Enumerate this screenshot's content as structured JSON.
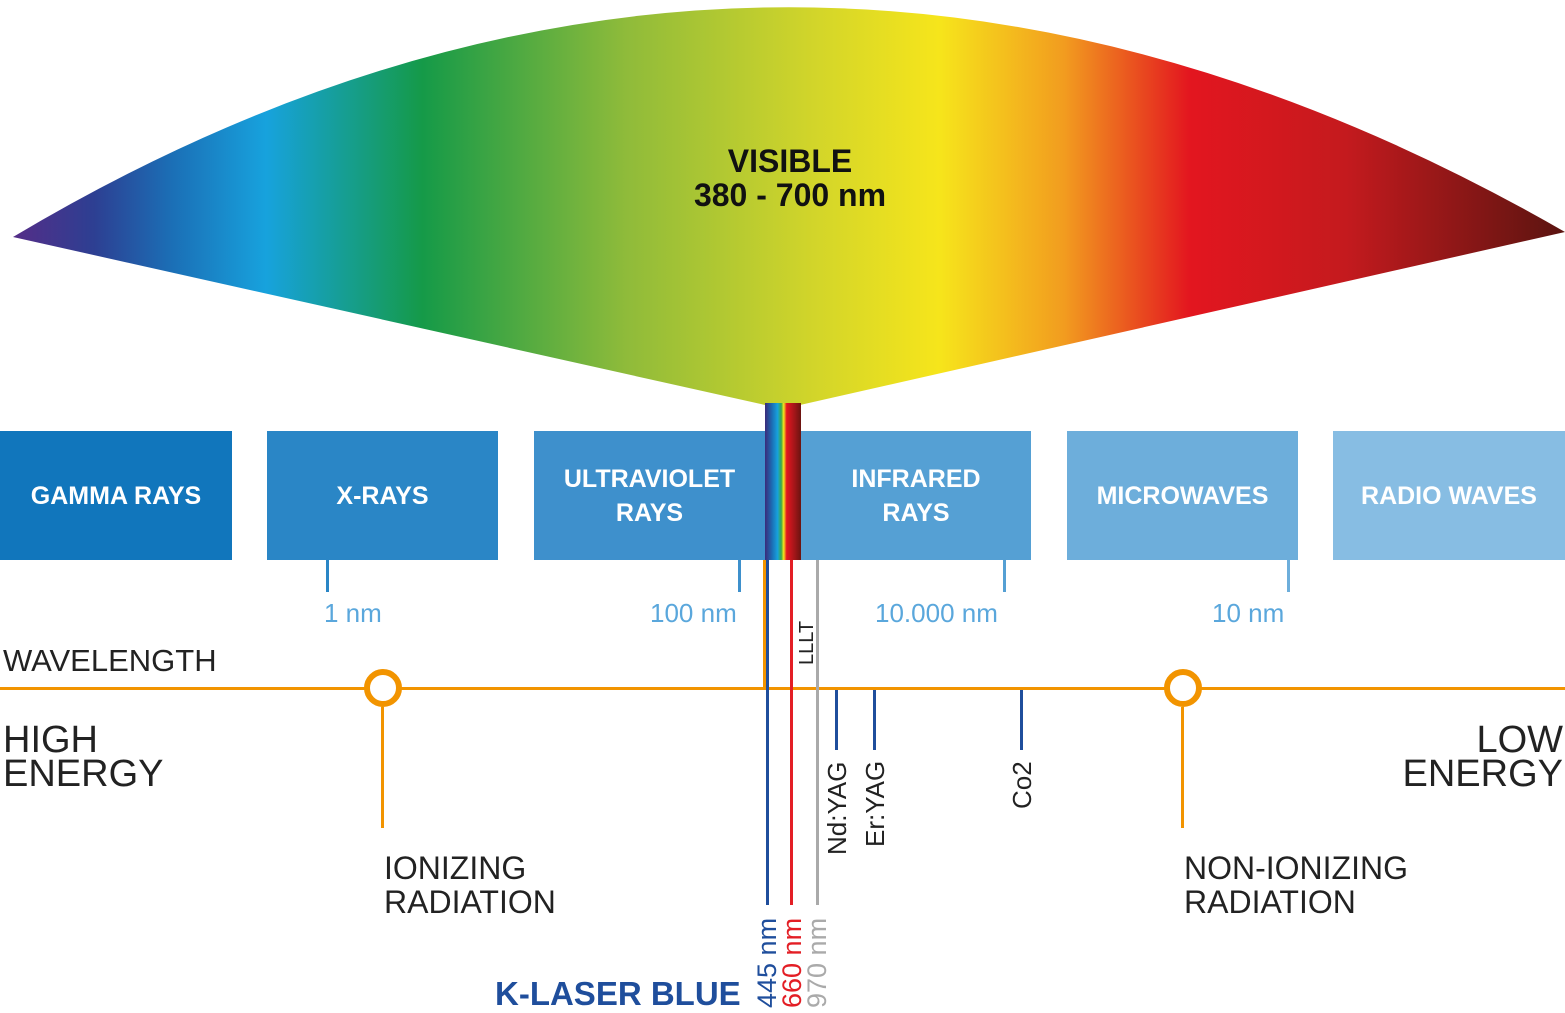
{
  "visible": {
    "title": "VISIBLE",
    "range": "380 - 700 nm"
  },
  "bands": [
    {
      "label": "GAMMA RAYS",
      "color": "#1176bc"
    },
    {
      "label": "X-RAYS",
      "color": "#2a86c6"
    },
    {
      "label": "ULTRAVIOLET\nRAYS",
      "color": "#3e90cc"
    },
    {
      "label": "INFRARED\nRAYS",
      "color": "#55a0d4"
    },
    {
      "label": "MICROWAVES",
      "color": "#6daedb"
    },
    {
      "label": "RADIO WAVES",
      "color": "#87bde3"
    }
  ],
  "scale": [
    "1 nm",
    "100 nm",
    "10.000 nm",
    "10 nm"
  ],
  "wavelength_label": "WAVELENGTH",
  "high_energy": "HIGH\nENERGY",
  "low_energy": "LOW\nENERGY",
  "ionizing": "IONIZING\nRADIATION",
  "non_ionizing": "NON-IONIZING\nRADIATION",
  "lasers": {
    "lllt": "LLLT",
    "ndyag": "Nd:YAG",
    "eryag": "Er:YAG",
    "co2": "Co2"
  },
  "k_laser": {
    "name": "K-LASER BLUE",
    "wavelengths": [
      {
        "label": "445 nm",
        "color": "#1f4e9c"
      },
      {
        "label": "660 nm",
        "color": "#e31e25"
      },
      {
        "label": "970 nm",
        "color": "#aaaaaa"
      }
    ]
  },
  "colors": {
    "orange": "#f29400",
    "tick_blue": "#5aa7dc",
    "dark_blue": "#1f4e9c"
  }
}
